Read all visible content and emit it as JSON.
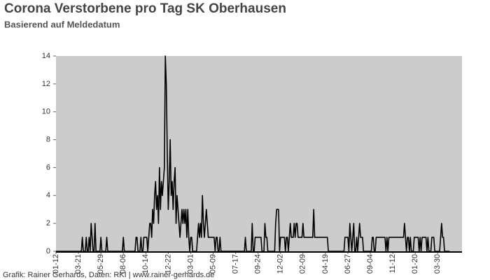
{
  "chart_data": {
    "type": "line",
    "title": "Corona Verstorbene pro Tag SK Oberhausen",
    "subtitle": "Basierend auf Meldedatum",
    "footer": "Grafik: Rainer Gerhards, Daten: RKI | www.rainer-gerhards.de",
    "ylim": [
      0,
      14
    ],
    "yticks": [
      0,
      2,
      4,
      6,
      8,
      10,
      12,
      14
    ],
    "background": "#cccccc",
    "series": [
      {
        "name": null,
        "color": "#000000",
        "values": [
          0,
          0,
          0,
          0,
          0,
          0,
          0,
          0,
          0,
          0,
          0,
          0,
          0,
          0,
          0,
          0,
          0,
          0,
          0,
          0,
          0,
          0,
          0,
          0,
          0,
          0,
          0,
          1,
          0,
          0,
          0,
          1,
          0,
          0,
          1,
          0,
          2,
          1,
          0,
          0,
          2,
          0,
          0,
          0,
          0,
          0,
          1,
          0,
          0,
          0,
          0,
          0,
          1,
          0,
          0,
          0,
          0,
          0,
          0,
          0,
          0,
          0,
          0,
          0,
          0,
          0,
          0,
          0,
          0,
          1,
          0,
          0,
          0,
          0,
          0,
          0,
          0,
          0,
          0,
          0,
          0,
          0,
          1,
          1,
          0,
          0,
          0,
          1,
          0,
          0,
          1,
          1,
          1,
          1,
          0,
          1,
          2,
          2,
          1,
          3,
          2,
          4,
          5,
          3,
          4,
          2,
          6,
          3,
          5,
          4,
          5,
          6,
          14,
          12,
          7,
          3,
          5,
          8,
          4,
          5,
          3,
          5,
          6,
          2,
          4,
          3,
          2,
          1,
          2,
          3,
          2,
          3,
          2,
          3,
          1,
          3,
          1,
          0,
          1,
          1,
          0,
          0,
          0,
          0,
          0,
          1,
          2,
          1,
          2,
          1,
          4,
          2,
          1,
          2,
          3,
          2,
          1,
          1,
          1,
          1,
          1,
          1,
          1,
          0,
          1,
          1,
          0,
          0,
          1,
          0,
          0,
          0,
          0,
          0,
          0,
          0,
          0,
          0,
          0,
          0,
          0,
          0,
          0,
          0,
          0,
          0,
          0,
          0,
          0,
          0,
          0,
          0,
          0,
          0,
          1,
          0,
          0,
          0,
          0,
          0,
          0,
          2,
          0,
          0,
          1,
          1,
          1,
          1,
          1,
          1,
          1,
          0,
          0,
          0,
          2,
          1,
          1,
          0,
          0,
          0,
          0,
          0,
          0,
          0,
          0,
          2,
          3,
          3,
          3,
          0,
          1,
          1,
          1,
          1,
          1,
          0,
          1,
          1,
          0,
          1,
          2,
          1,
          1,
          1,
          2,
          1,
          2,
          2,
          1,
          1,
          1,
          1,
          1,
          2,
          1,
          1,
          1,
          1,
          1,
          1,
          1,
          1,
          1,
          1,
          3,
          1,
          1,
          1,
          1,
          1,
          1,
          1,
          1,
          1,
          1,
          1,
          1,
          1,
          1,
          0,
          0,
          0,
          0,
          0,
          0,
          0,
          0,
          0,
          0,
          0,
          0,
          0,
          0,
          0,
          0,
          0,
          1,
          1,
          1,
          1,
          0,
          2,
          1,
          0,
          1,
          2,
          0,
          0,
          1,
          0,
          1,
          2,
          1,
          1,
          1,
          0,
          0,
          0,
          0,
          0,
          0,
          0,
          0,
          0,
          1,
          1,
          0,
          0,
          1,
          1,
          1,
          1,
          1,
          1,
          1,
          1,
          1,
          1,
          0,
          1,
          0,
          1,
          1,
          1,
          1,
          1,
          1,
          1,
          1,
          1,
          1,
          1,
          1,
          1,
          1,
          1,
          1,
          2,
          1,
          0,
          1,
          1,
          0,
          1,
          0,
          0,
          0,
          1,
          1,
          1,
          1,
          1,
          0,
          1,
          0,
          1,
          1,
          1,
          1,
          1,
          0,
          1,
          0,
          0,
          0,
          1,
          1,
          1,
          0,
          0,
          0,
          0,
          0,
          0,
          1,
          2,
          1,
          1,
          0,
          0,
          0,
          0,
          0,
          0
        ]
      }
    ],
    "categories": [
      "01-12",
      null,
      null,
      null,
      null,
      null,
      null,
      null,
      null,
      null,
      null,
      null,
      null,
      null,
      null,
      null,
      null,
      null,
      null,
      null,
      null,
      null,
      null,
      "03-21",
      null,
      null,
      null,
      null,
      null,
      null,
      null,
      null,
      null,
      null,
      null,
      null,
      null,
      null,
      null,
      null,
      null,
      null,
      null,
      null,
      null,
      null,
      "05-29",
      null,
      null,
      null,
      null,
      null,
      null,
      null,
      null,
      null,
      null,
      null,
      null,
      null,
      null,
      null,
      null,
      null,
      null,
      null,
      null,
      null,
      null,
      "08-06",
      null,
      null,
      null,
      null,
      null,
      null,
      null,
      null,
      null,
      null,
      null,
      null,
      null,
      null,
      null,
      null,
      null,
      null,
      null,
      null,
      null,
      null,
      "10-14",
      null,
      null,
      null,
      null,
      null,
      null,
      null,
      null,
      null,
      null,
      null,
      null,
      null,
      null,
      null,
      null,
      null,
      null,
      null,
      null,
      null,
      null,
      "12-22",
      null,
      null,
      null,
      null,
      null,
      null,
      null,
      null,
      null,
      null,
      null,
      null,
      null,
      null,
      null,
      null,
      null,
      null,
      null,
      null,
      null,
      null,
      "03-01",
      null,
      null,
      null,
      null,
      null,
      null,
      null,
      null,
      null,
      null,
      null,
      null,
      null,
      null,
      null,
      null,
      null,
      null,
      null,
      null,
      null,
      null,
      "05-09",
      null,
      null,
      null,
      null,
      null,
      null,
      null,
      null,
      null,
      null,
      null,
      null,
      null,
      null,
      null,
      null,
      null,
      null,
      null,
      null,
      null,
      null,
      "07-17",
      null,
      null,
      null,
      null,
      null,
      null,
      null,
      null,
      null,
      null,
      null,
      null,
      null,
      null,
      null,
      null,
      null,
      null,
      null,
      null,
      null,
      null,
      "09-24",
      null,
      null,
      null,
      null,
      null,
      null,
      null,
      null,
      null,
      null,
      null,
      null,
      null,
      null,
      null,
      null,
      null,
      null,
      null,
      null,
      null,
      null,
      "12-02",
      null,
      null,
      null,
      null,
      null,
      null,
      null,
      null,
      null,
      null,
      null,
      null,
      null,
      null,
      null,
      null,
      null,
      null,
      null,
      null,
      null,
      null,
      "02-09",
      null,
      null,
      null,
      null,
      null,
      null,
      null,
      null,
      null,
      null,
      null,
      null,
      null,
      null,
      null,
      null,
      null,
      null,
      null,
      null,
      null,
      null,
      "04-19",
      null,
      null,
      null,
      null,
      null,
      null,
      null,
      null,
      null,
      null,
      null,
      null,
      null,
      null,
      null,
      null,
      null,
      null,
      null,
      null,
      null,
      null,
      "06-27",
      null,
      null,
      null,
      null,
      null,
      null,
      null,
      null,
      null,
      null,
      null,
      null,
      null,
      null,
      null,
      null,
      null,
      null,
      null,
      null,
      null,
      null,
      "09-04",
      null,
      null,
      null,
      null,
      null,
      null,
      null,
      null,
      null,
      null,
      null,
      null,
      null,
      null,
      null,
      null,
      null,
      null,
      null,
      null,
      null,
      null,
      "11-12",
      null,
      null,
      null,
      null,
      null,
      null,
      null,
      null,
      null,
      null,
      null,
      null,
      null,
      null,
      null,
      null,
      null,
      null,
      null,
      null,
      null,
      null,
      "01-20",
      null,
      null,
      null,
      null,
      null,
      null,
      null,
      null,
      null,
      null,
      null,
      null,
      null,
      null,
      null,
      null,
      null,
      null,
      null,
      null,
      null,
      null,
      "03-30",
      null,
      null,
      null,
      null,
      null,
      null,
      null,
      null,
      null,
      null,
      null,
      null
    ]
  }
}
